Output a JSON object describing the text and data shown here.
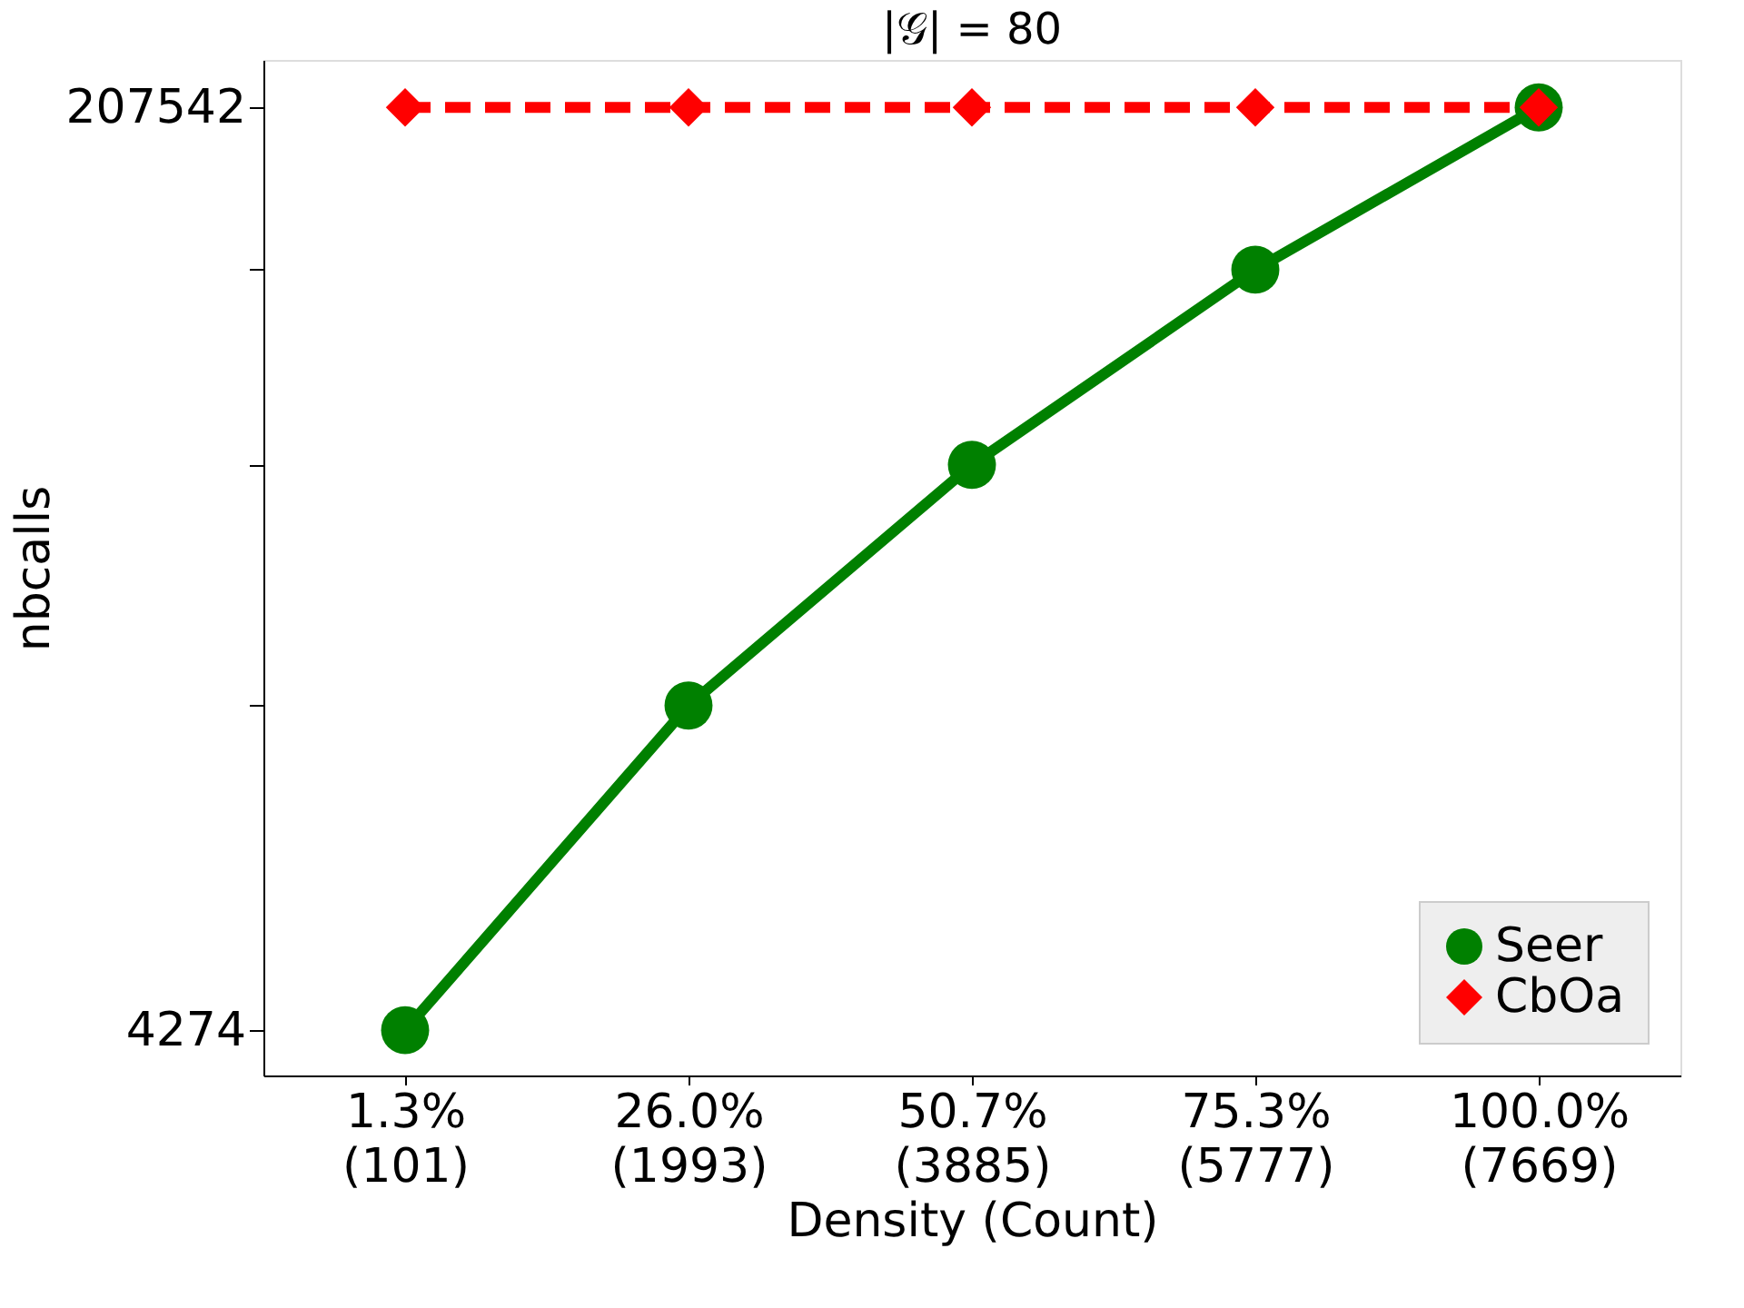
{
  "chart_data": {
    "type": "line",
    "title": "|𝒢| = 80",
    "xlabel": "Density (Count)",
    "ylabel": "nbcalls",
    "categories": [
      "1.3%\n(101)",
      "26.0%\n(1993)",
      "50.7%\n(3885)",
      "75.3%\n(5777)",
      "100.0%\n(7669)"
    ],
    "series": [
      {
        "name": "Seer",
        "color": "#008000",
        "marker": "circle",
        "line_style": "solid",
        "values": [
          4274,
          75800,
          128800,
          171800,
          207542
        ]
      },
      {
        "name": "CbOa",
        "color": "#ff0000",
        "marker": "diamond",
        "line_style": "dashed",
        "values": [
          207542,
          207542,
          207542,
          207542,
          207542
        ]
      }
    ],
    "ylim": [
      -5700,
      218000
    ],
    "yticks": [
      4274,
      {
        "value": 75800,
        "label": null
      },
      {
        "value": 128800,
        "label": null
      },
      {
        "value": 171800,
        "label": null
      },
      207542
    ],
    "grid": false,
    "legend": "bottom right"
  }
}
